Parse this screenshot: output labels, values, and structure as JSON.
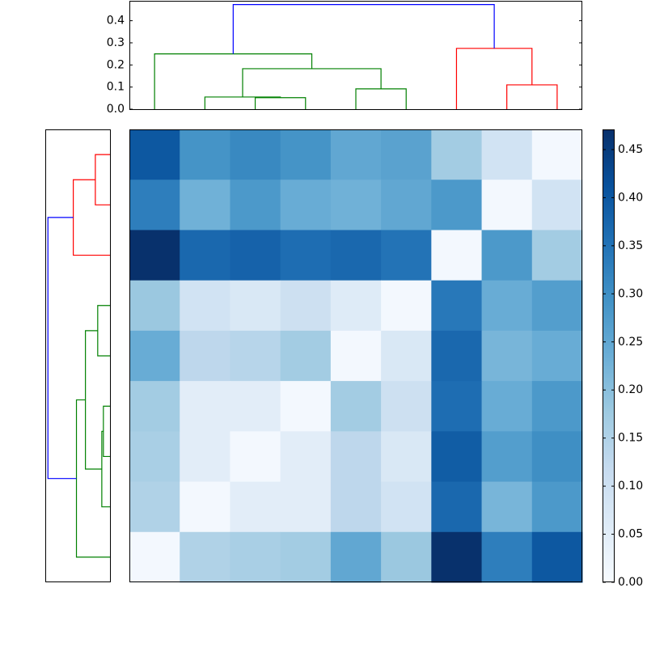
{
  "chart_data": [
    {
      "type": "heatmap",
      "values": [
        [
          0.4,
          0.29,
          0.31,
          0.29,
          0.25,
          0.26,
          0.17,
          0.09,
          0.01
        ],
        [
          0.33,
          0.23,
          0.28,
          0.24,
          0.23,
          0.25,
          0.28,
          0.01,
          0.09
        ],
        [
          0.47,
          0.37,
          0.38,
          0.36,
          0.37,
          0.35,
          0.01,
          0.28,
          0.17
        ],
        [
          0.18,
          0.09,
          0.07,
          0.1,
          0.06,
          0.01,
          0.34,
          0.24,
          0.27
        ],
        [
          0.24,
          0.13,
          0.14,
          0.17,
          0.01,
          0.07,
          0.37,
          0.22,
          0.24
        ],
        [
          0.17,
          0.05,
          0.05,
          0.01,
          0.17,
          0.1,
          0.36,
          0.24,
          0.28
        ],
        [
          0.16,
          0.05,
          0.01,
          0.05,
          0.13,
          0.07,
          0.39,
          0.27,
          0.3
        ],
        [
          0.15,
          0.01,
          0.05,
          0.05,
          0.13,
          0.09,
          0.37,
          0.22,
          0.28
        ],
        [
          0.01,
          0.15,
          0.16,
          0.17,
          0.25,
          0.18,
          0.47,
          0.33,
          0.4
        ]
      ],
      "clim": [
        0,
        0.471
      ],
      "cticks": [
        {
          "value": 0,
          "label": "0.00"
        },
        {
          "value": 0.05,
          "label": "0.05"
        },
        {
          "value": 0.1,
          "label": "0.10"
        },
        {
          "value": 0.15,
          "label": "0.15"
        },
        {
          "value": 0.2,
          "label": "0.20"
        },
        {
          "value": 0.25,
          "label": "0.25"
        },
        {
          "value": 0.3,
          "label": "0.30"
        },
        {
          "value": 0.35,
          "label": "0.35"
        },
        {
          "value": 0.4,
          "label": "0.40"
        },
        {
          "value": 0.45,
          "label": "0.45"
        }
      ],
      "colormap": [
        "#f7fbff",
        "#deebf7",
        "#c6dbef",
        "#9ecae1",
        "#6baed6",
        "#4292c6",
        "#2171b5",
        "#08519c",
        "#08306b"
      ]
    },
    {
      "type": "dendrogram",
      "orientation": "top",
      "xlim": [
        0,
        90
      ],
      "ylim": [
        0,
        0.49
      ],
      "yticks": [
        {
          "value": 0,
          "label": "0.0"
        },
        0.1,
        0.2,
        0.3,
        0.4
      ],
      "links": [
        {
          "color": "#008000",
          "icoord": [
            25,
            25,
            35,
            35
          ],
          "dcoord": [
            0,
            0.052,
            0.052,
            0
          ]
        },
        {
          "color": "#008000",
          "icoord": [
            15,
            15,
            30,
            30
          ],
          "dcoord": [
            0,
            0.055,
            0.055,
            0.052
          ]
        },
        {
          "color": "#008000",
          "icoord": [
            45,
            45,
            55,
            55
          ],
          "dcoord": [
            0,
            0.092,
            0.092,
            0
          ]
        },
        {
          "color": "#008000",
          "icoord": [
            22.5,
            22.5,
            50,
            50
          ],
          "dcoord": [
            0.055,
            0.183,
            0.183,
            0.092
          ]
        },
        {
          "color": "#008000",
          "icoord": [
            5,
            5,
            36.25,
            36.25
          ],
          "dcoord": [
            0,
            0.25,
            0.25,
            0.183
          ]
        },
        {
          "color": "#ff0000",
          "icoord": [
            75,
            75,
            85,
            85
          ],
          "dcoord": [
            0,
            0.11,
            0.11,
            0
          ]
        },
        {
          "color": "#ff0000",
          "icoord": [
            65,
            65,
            80,
            80
          ],
          "dcoord": [
            0,
            0.275,
            0.275,
            0.11
          ]
        },
        {
          "color": "#0000ff",
          "icoord": [
            20.625,
            20.625,
            72.5,
            72.5
          ],
          "dcoord": [
            0.25,
            0.473,
            0.473,
            0.275
          ]
        }
      ]
    },
    {
      "type": "dendrogram",
      "orientation": "left",
      "xlim": [
        0.49,
        0
      ],
      "ylim": [
        0,
        90
      ],
      "links": [
        {
          "color": "#ff0000",
          "icoord": [
            5,
            5,
            15,
            15
          ],
          "dcoord": [
            0,
            0.111,
            0.111,
            0
          ]
        },
        {
          "color": "#ff0000",
          "icoord": [
            10,
            10,
            25,
            25
          ],
          "dcoord": [
            0.111,
            0.278,
            0.278,
            0
          ]
        },
        {
          "color": "#008000",
          "icoord": [
            35,
            35,
            45,
            45
          ],
          "dcoord": [
            0,
            0.093,
            0.093,
            0
          ]
        },
        {
          "color": "#008000",
          "icoord": [
            55,
            55,
            65,
            65
          ],
          "dcoord": [
            0,
            0.05,
            0.05,
            0
          ]
        },
        {
          "color": "#008000",
          "icoord": [
            60,
            60,
            75,
            75
          ],
          "dcoord": [
            0.05,
            0.062,
            0.062,
            0
          ]
        },
        {
          "color": "#008000",
          "icoord": [
            40,
            40,
            67.5,
            67.5
          ],
          "dcoord": [
            0.093,
            0.186,
            0.186,
            0.062
          ]
        },
        {
          "color": "#008000",
          "icoord": [
            53.75,
            53.75,
            85,
            85
          ],
          "dcoord": [
            0.186,
            0.254,
            0.254,
            0
          ]
        },
        {
          "color": "#0000ff",
          "icoord": [
            17.5,
            17.5,
            69.375,
            69.375
          ],
          "dcoord": [
            0.278,
            0.47,
            0.47,
            0.254
          ]
        }
      ]
    }
  ]
}
